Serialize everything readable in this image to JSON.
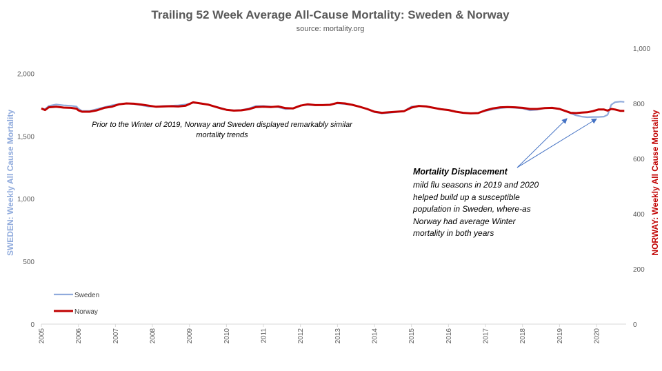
{
  "chart_data": {
    "type": "line",
    "title": "Trailing 52 Week Average All-Cause Mortality: Sweden & Norway",
    "subtitle": "source: mortality.org",
    "ylabel_left": "SWEDEN: Weekly All Cause Mortality",
    "ylabel_right": "NORWAY: Weekly All Cause  Mortality",
    "ylim_left": [
      0,
      2200
    ],
    "ylim_right": [
      0,
      1000
    ],
    "yticks_left": [
      0,
      500,
      1000,
      1500,
      2000
    ],
    "yticks_left_labels": [
      "0",
      "500",
      "1,000",
      "1,500",
      "2,000"
    ],
    "yticks_right": [
      0,
      200,
      400,
      600,
      800,
      1000
    ],
    "yticks_right_labels": [
      "0",
      "200",
      "400",
      "600",
      "800",
      "1,000"
    ],
    "xlim": [
      2005,
      2020.8
    ],
    "x_tick_labels": [
      "2005",
      "2006",
      "2007",
      "2008",
      "2009",
      "2010",
      "2011",
      "2012",
      "2013",
      "2014",
      "2015",
      "2016",
      "2017",
      "2018",
      "2019",
      "2020"
    ],
    "series": [
      {
        "name": "Sweden",
        "axis": "left",
        "color": "#8faadc",
        "x": [
          2005.0,
          2005.1,
          2005.2,
          2005.4,
          2005.6,
          2005.8,
          2005.95,
          2006.0,
          2006.1,
          2006.3,
          2006.5,
          2006.7,
          2006.9,
          2007.1,
          2007.3,
          2007.5,
          2007.7,
          2007.9,
          2008.1,
          2008.3,
          2008.5,
          2008.7,
          2008.9,
          2009.1,
          2009.3,
          2009.5,
          2009.7,
          2009.85,
          2010.0,
          2010.2,
          2010.4,
          2010.6,
          2010.8,
          2011.0,
          2011.2,
          2011.4,
          2011.6,
          2011.8,
          2012.0,
          2012.2,
          2012.4,
          2012.6,
          2012.8,
          2013.0,
          2013.2,
          2013.4,
          2013.6,
          2013.8,
          2014.0,
          2014.2,
          2014.4,
          2014.6,
          2014.8,
          2015.0,
          2015.2,
          2015.4,
          2015.6,
          2015.8,
          2016.0,
          2016.2,
          2016.4,
          2016.6,
          2016.8,
          2017.0,
          2017.2,
          2017.4,
          2017.6,
          2017.8,
          2018.0,
          2018.2,
          2018.4,
          2018.6,
          2018.8,
          2019.0,
          2019.15,
          2019.3,
          2019.45,
          2019.6,
          2019.75,
          2019.9,
          2020.05,
          2020.2,
          2020.3,
          2020.4,
          2020.5,
          2020.65,
          2020.75
        ],
        "values": [
          1720,
          1715,
          1740,
          1752,
          1745,
          1742,
          1735,
          1718,
          1700,
          1700,
          1715,
          1730,
          1745,
          1755,
          1760,
          1755,
          1745,
          1735,
          1735,
          1740,
          1742,
          1745,
          1752,
          1765,
          1762,
          1750,
          1735,
          1725,
          1710,
          1705,
          1708,
          1720,
          1740,
          1740,
          1735,
          1730,
          1715,
          1720,
          1745,
          1748,
          1745,
          1748,
          1752,
          1760,
          1755,
          1748,
          1735,
          1715,
          1690,
          1680,
          1685,
          1690,
          1700,
          1735,
          1740,
          1738,
          1725,
          1715,
          1710,
          1695,
          1685,
          1680,
          1685,
          1700,
          1712,
          1722,
          1728,
          1725,
          1720,
          1705,
          1710,
          1722,
          1722,
          1715,
          1700,
          1680,
          1665,
          1655,
          1650,
          1652,
          1652,
          1655,
          1670,
          1750,
          1770,
          1775,
          1772
        ]
      },
      {
        "name": "Norway",
        "axis": "right",
        "color": "#c00000",
        "x": [
          2005.0,
          2005.1,
          2005.2,
          2005.4,
          2005.6,
          2005.8,
          2005.95,
          2006.0,
          2006.1,
          2006.3,
          2006.5,
          2006.7,
          2006.9,
          2007.1,
          2007.3,
          2007.5,
          2007.7,
          2007.9,
          2008.1,
          2008.3,
          2008.5,
          2008.7,
          2008.9,
          2009.1,
          2009.3,
          2009.5,
          2009.7,
          2009.85,
          2010.0,
          2010.2,
          2010.4,
          2010.6,
          2010.8,
          2011.0,
          2011.2,
          2011.4,
          2011.6,
          2011.8,
          2012.0,
          2012.2,
          2012.4,
          2012.6,
          2012.8,
          2013.0,
          2013.2,
          2013.4,
          2013.6,
          2013.8,
          2014.0,
          2014.2,
          2014.4,
          2014.6,
          2014.8,
          2015.0,
          2015.2,
          2015.4,
          2015.6,
          2015.8,
          2016.0,
          2016.2,
          2016.4,
          2016.6,
          2016.8,
          2017.0,
          2017.2,
          2017.4,
          2017.6,
          2017.8,
          2018.0,
          2018.2,
          2018.4,
          2018.6,
          2018.8,
          2019.0,
          2019.15,
          2019.3,
          2019.45,
          2019.6,
          2019.75,
          2019.9,
          2020.05,
          2020.2,
          2020.3,
          2020.4,
          2020.5,
          2020.65,
          2020.75
        ],
        "values": [
          782,
          776,
          786,
          788,
          785,
          784,
          781,
          775,
          770,
          770,
          775,
          784,
          788,
          797,
          800,
          799,
          796,
          792,
          788,
          789,
          790,
          789,
          792,
          804,
          800,
          796,
          788,
          782,
          777,
          774,
          775,
          779,
          787,
          788,
          787,
          789,
          783,
          782,
          792,
          797,
          794,
          794,
          795,
          802,
          800,
          795,
          788,
          780,
          770,
          766,
          768,
          770,
          772,
          785,
          791,
          789,
          784,
          779,
          776,
          770,
          766,
          764,
          765,
          775,
          782,
          786,
          787,
          786,
          784,
          780,
          780,
          783,
          784,
          780,
          773,
          766,
          765,
          767,
          768,
          772,
          778,
          778,
          774,
          780,
          778,
          773,
          773
        ]
      }
    ],
    "annotations": [
      "Prior to the Winter of 2019, Norway and Sweden displayed remarkably similar",
      "mortality trends"
    ],
    "callout": {
      "heading": "Mortality Displacement",
      "lines": [
        "mild flu seasons in 2019 and 2020",
        "helped build  up a susceptible",
        "population  in Sweden, where-as",
        "Norway had average Winter",
        "mortality in both years"
      ],
      "arrow_targets": [
        {
          "x": 2019.2,
          "value": 1650
        },
        {
          "x": 2020.0,
          "value": 1648
        }
      ]
    },
    "legend": {
      "placement": "bottom-left",
      "entries": [
        "Sweden",
        "Norway"
      ]
    },
    "grid": false
  }
}
